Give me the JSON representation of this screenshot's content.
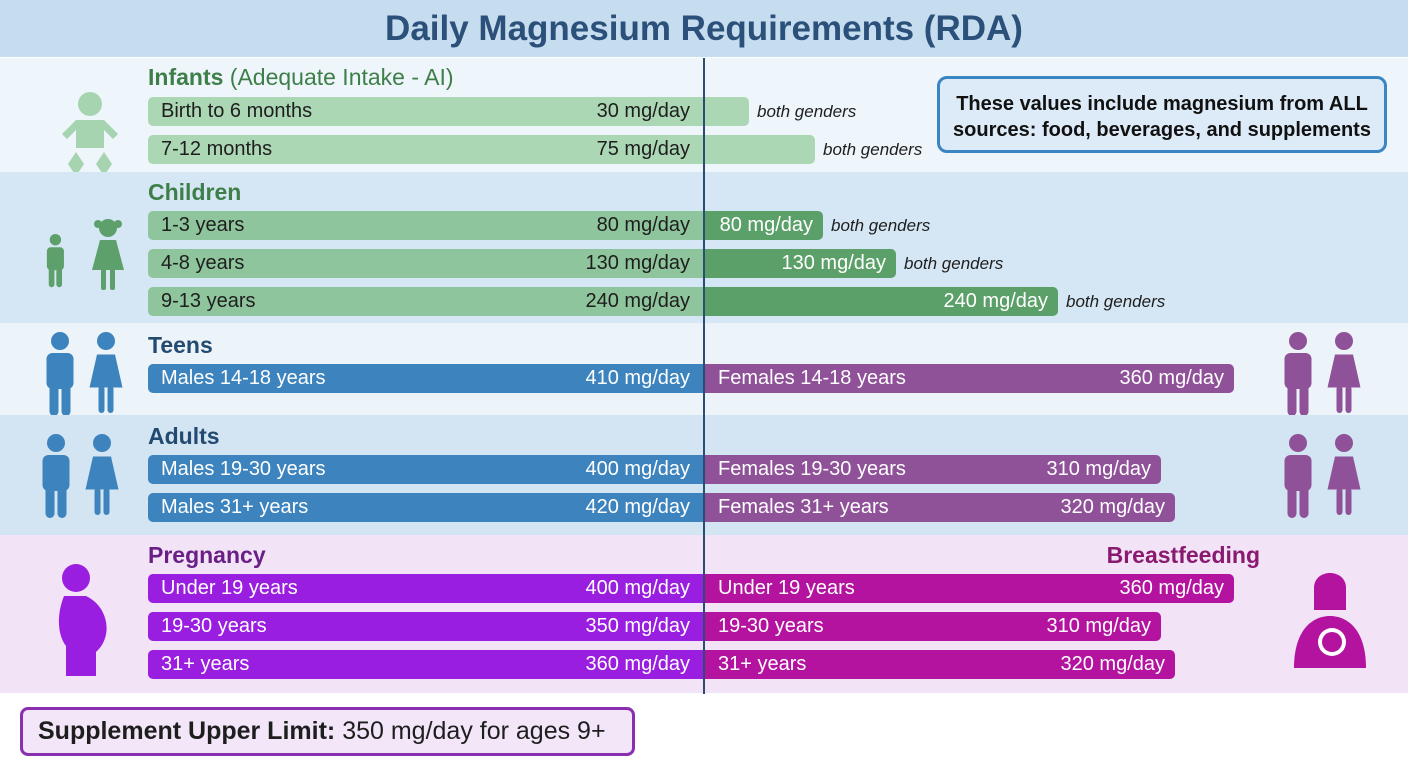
{
  "title": "Daily Magnesium Requirements (RDA)",
  "info_note": "These values include magnesium from ALL sources: food, beverages, and supplements",
  "upper_limit": {
    "label": "Supplement Upper Limit:",
    "text": "350 mg/day for ages 9+"
  },
  "colors": {
    "infant_bar": "#acd7b5",
    "child_left": "#8fc59c",
    "child_right": "#5b9f69",
    "male": "#3d84be",
    "female": "#8f5198",
    "pregnancy": "#9a1ee0",
    "breastfeeding": "#b3139f"
  },
  "chart_data": {
    "type": "bar",
    "title": "Daily Magnesium Requirements (RDA)",
    "unit": "mg/day",
    "groups": [
      {
        "heading": "Infants",
        "subheading": "(Adequate Intake - AI)",
        "rows": [
          {
            "left_label": "Birth to 6 months",
            "left_value": "30 mg/day",
            "right_value_num": 30,
            "right_note": "both genders"
          },
          {
            "left_label": "7-12 months",
            "left_value": "75 mg/day",
            "right_value_num": 75,
            "right_note": "both genders"
          }
        ]
      },
      {
        "heading": "Children",
        "rows": [
          {
            "left_label": "1-3 years",
            "left_value": "80 mg/day",
            "right_value": "80 mg/day",
            "right_value_num": 80,
            "right_note": "both genders"
          },
          {
            "left_label": "4-8 years",
            "left_value": "130 mg/day",
            "right_value": "130 mg/day",
            "right_value_num": 130,
            "right_note": "both genders"
          },
          {
            "left_label": "9-13 years",
            "left_value": "240 mg/day",
            "right_value": "240 mg/day",
            "right_value_num": 240,
            "right_note": "both genders"
          }
        ]
      },
      {
        "heading": "Teens",
        "rows": [
          {
            "left_label": "Males 14-18 years",
            "left_value": "410 mg/day",
            "right_label": "Females 14-18 years",
            "right_value": "360 mg/day",
            "right_value_num": 360
          }
        ]
      },
      {
        "heading": "Adults",
        "rows": [
          {
            "left_label": "Males 19-30 years",
            "left_value": "400 mg/day",
            "right_label": "Females 19-30 years",
            "right_value": "310 mg/day",
            "right_value_num": 310
          },
          {
            "left_label": "Males 31+ years",
            "left_value": "420 mg/day",
            "right_label": "Females 31+ years",
            "right_value": "320 mg/day",
            "right_value_num": 320
          }
        ]
      },
      {
        "heading": "Pregnancy",
        "right_heading": "Breastfeeding",
        "rows": [
          {
            "left_label": "Under 19 years",
            "left_value": "400 mg/day",
            "right_label": "Under 19 years",
            "right_value": "360 mg/day",
            "right_value_num": 360
          },
          {
            "left_label": "19-30 years",
            "left_value": "350 mg/day",
            "right_label": "19-30 years",
            "right_value": "310 mg/day",
            "right_value_num": 310
          },
          {
            "left_label": "31+ years",
            "left_value": "360 mg/day",
            "right_label": "31+ years",
            "right_value": "320 mg/day",
            "right_value_num": 320
          }
        ]
      }
    ]
  }
}
